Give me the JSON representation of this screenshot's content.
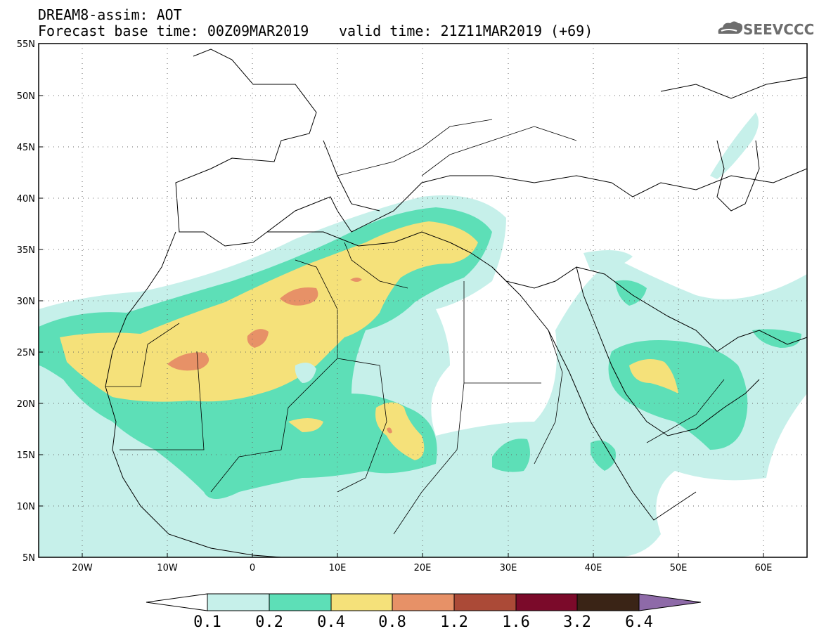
{
  "header": {
    "title_line1": "DREAM8-assim: AOT",
    "title_line2": "Forecast base time: 00Z09MAR2019",
    "valid_time": "valid time: 21Z11MAR2019 (+69)",
    "logo_text": "SEEVCCC",
    "logo_icon": "cloud-icon"
  },
  "map": {
    "lat_labels": [
      "55N",
      "50N",
      "45N",
      "40N",
      "35N",
      "30N",
      "25N",
      "20N",
      "15N",
      "10N",
      "5N"
    ],
    "lon_labels": [
      "20W",
      "10W",
      "0",
      "10E",
      "20E",
      "30E",
      "40E",
      "50E",
      "60E"
    ],
    "lat_range": [
      5,
      55
    ],
    "lon_range": [
      -25,
      65
    ],
    "grid": "dotted"
  },
  "colorbar": {
    "levels": [
      "0.1",
      "0.2",
      "0.4",
      "0.8",
      "1.2",
      "1.6",
      "3.2",
      "6.4"
    ],
    "colors": [
      "#ffffff",
      "#c6f0ea",
      "#5ddfb7",
      "#f5e17a",
      "#e79167",
      "#ab4a37",
      "#7b0a2a",
      "#3a2416",
      "#8e6aa8"
    ]
  }
}
